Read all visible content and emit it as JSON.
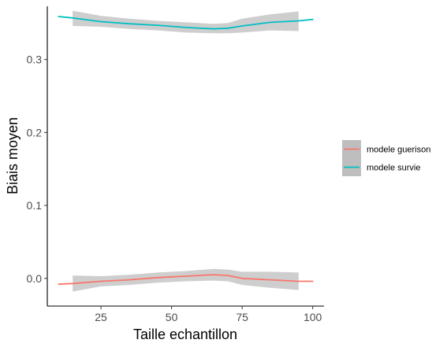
{
  "chart_data": {
    "type": "line",
    "xlabel": "Taille echantillon",
    "ylabel": "Biais moyen",
    "xlim": [
      6,
      104
    ],
    "ylim": [
      -0.038,
      0.373
    ],
    "x_ticks": [
      25,
      50,
      75,
      100
    ],
    "y_ticks": [
      0.0,
      0.1,
      0.2,
      0.3
    ],
    "x_tick_labels": [
      "25",
      "50",
      "75",
      "100"
    ],
    "y_tick_labels": [
      "0.0",
      "0.1",
      "0.2",
      "0.3"
    ],
    "grid": false,
    "legend_position": "right",
    "confidence_band_color": "#bebebe",
    "series": [
      {
        "name": "modele guerison",
        "color": "#F8766D",
        "x": [
          10,
          15,
          25,
          35,
          45,
          55,
          65,
          70,
          75,
          85,
          95,
          100
        ],
        "y": [
          -0.008,
          -0.007,
          -0.004,
          -0.002,
          0.001,
          0.003,
          0.005,
          0.004,
          0.0,
          -0.002,
          -0.004,
          -0.004
        ],
        "band_x": [
          15,
          25,
          35,
          45,
          55,
          65,
          70,
          75,
          85,
          95
        ],
        "band_lower": [
          -0.018,
          -0.011,
          -0.009,
          -0.006,
          -0.004,
          -0.003,
          -0.004,
          -0.009,
          -0.013,
          -0.016
        ],
        "band_upper": [
          0.004,
          0.003,
          0.005,
          0.008,
          0.01,
          0.013,
          0.012,
          0.009,
          0.009,
          0.008
        ]
      },
      {
        "name": "modele survie",
        "color": "#00BFC4",
        "x": [
          10,
          15,
          25,
          35,
          45,
          55,
          65,
          70,
          75,
          85,
          95,
          100
        ],
        "y": [
          0.359,
          0.357,
          0.352,
          0.349,
          0.347,
          0.344,
          0.342,
          0.343,
          0.346,
          0.351,
          0.353,
          0.355
        ],
        "band_x": [
          15,
          25,
          35,
          45,
          55,
          65,
          70,
          75,
          85,
          95
        ],
        "band_lower": [
          0.346,
          0.345,
          0.342,
          0.34,
          0.337,
          0.336,
          0.336,
          0.337,
          0.34,
          0.339
        ],
        "band_upper": [
          0.367,
          0.36,
          0.356,
          0.353,
          0.351,
          0.349,
          0.35,
          0.356,
          0.362,
          0.366
        ]
      }
    ]
  }
}
